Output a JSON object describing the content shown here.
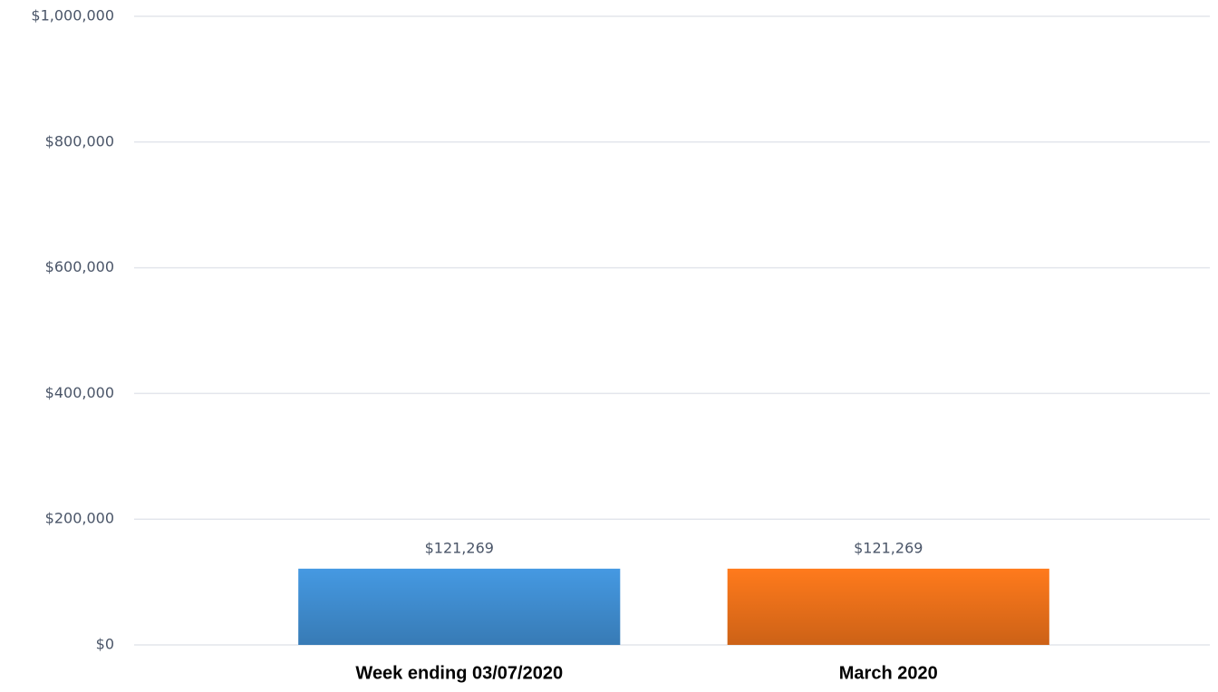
{
  "chart_data": {
    "type": "bar",
    "categories": [
      "Week ending 03/07/2020",
      "March 2020"
    ],
    "values": [
      121269,
      121269
    ],
    "value_labels": [
      "$121,269",
      "$121,269"
    ],
    "colors": [
      "#4599e2",
      "#ff7a1c"
    ],
    "ylim": [
      0,
      1000000
    ],
    "yticks": [
      {
        "value": 0,
        "label": "$0"
      },
      {
        "value": 200000,
        "label": "$200,000"
      },
      {
        "value": 400000,
        "label": "$400,000"
      },
      {
        "value": 600000,
        "label": "$600,000"
      },
      {
        "value": 800000,
        "label": "$800,000"
      },
      {
        "value": 1000000,
        "label": "$1,000,000"
      }
    ],
    "grid": true
  }
}
